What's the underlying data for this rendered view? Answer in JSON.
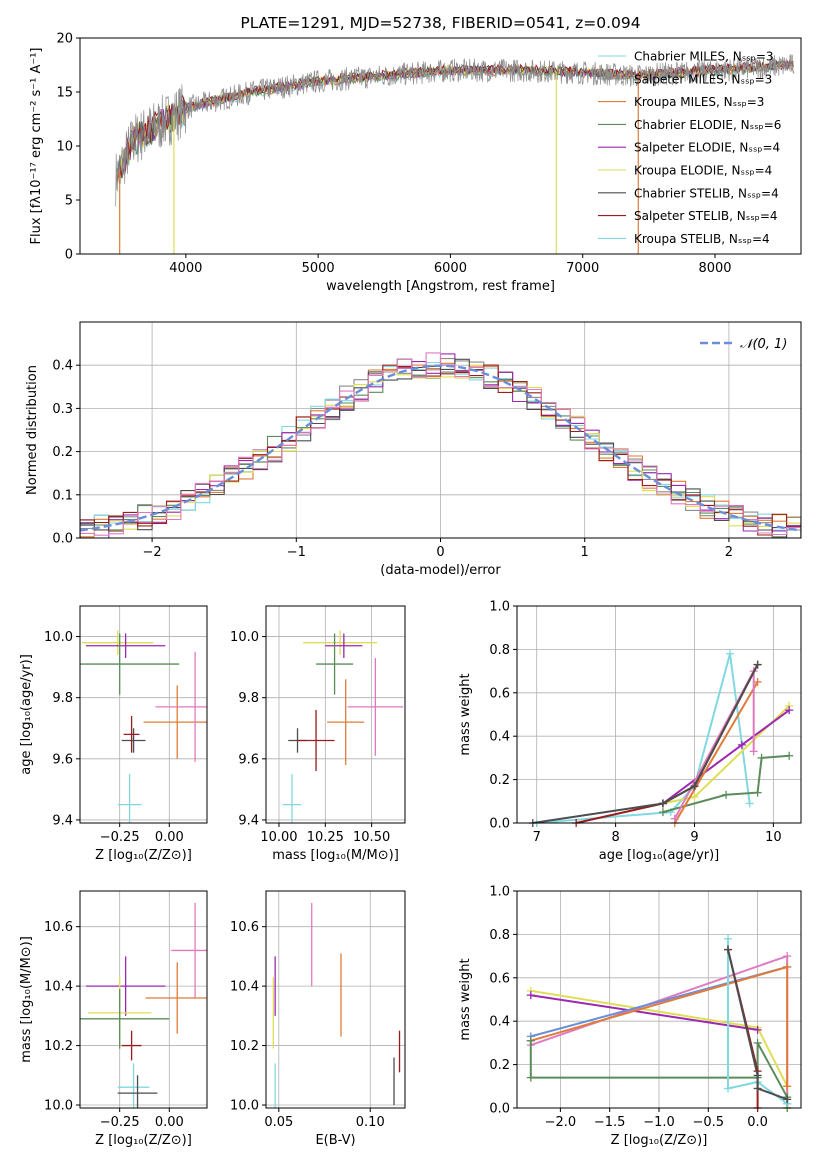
{
  "colors": [
    "#8c8c8c",
    "#9b4dca",
    "#ffa500",
    "#5b8c5a",
    "#9c27b0",
    "#dede55",
    "#4d4d4d",
    "#9b1c1c",
    "#80d8e0",
    "#e07ac0",
    "#e07b39",
    "#6a8fd8"
  ],
  "spectrum": {
    "title": "PLATE=1291, MJD=52738, FIBERID=0541, z=0.094",
    "xlabel": "wavelength [Angstrom, rest frame]",
    "ylabel": "Flux [fλ10⁻¹⁷ erg cm⁻² s⁻¹ A⁻¹]",
    "xticks": [
      "4000",
      "5000",
      "6000",
      "7000",
      "8000"
    ],
    "yticks": [
      "0",
      "5",
      "10",
      "15",
      "20"
    ],
    "legend": [
      {
        "label": "Chabrier MILES, N_SSP=3",
        "color": "#80d8e0"
      },
      {
        "label": "Salpeter MILES, N_SSP=3",
        "color": "#8c8c8c"
      },
      {
        "label": "Kroupa MILES, N_SSP=3",
        "color": "#e07b39"
      },
      {
        "label": "Chabrier ELODIE, N_SSP=6",
        "color": "#5b8c5a"
      },
      {
        "label": "Salpeter ELODIE, N_SSP=4",
        "color": "#9c27b0"
      },
      {
        "label": "Kroupa ELODIE, N_SSP=4",
        "color": "#dede55"
      },
      {
        "label": "Chabrier STELIB, N_SSP=4",
        "color": "#4d4d4d"
      },
      {
        "label": "Salpeter STELIB, N_SSP=4",
        "color": "#9b1c1c"
      },
      {
        "label": "Kroupa STELIB, N_SSP=4",
        "color": "#80d8e0"
      }
    ]
  },
  "residual": {
    "xlabel": "(data-model)/error",
    "ylabel": "Normed distribution",
    "xticks": [
      "−2",
      "−1",
      "0",
      "1",
      "2"
    ],
    "yticks": [
      "0.0",
      "0.1",
      "0.2",
      "0.3",
      "0.4"
    ],
    "legend": "𝒩(0, 1)"
  },
  "panels": {
    "age_vs_z": {
      "xlabel": "Z [log₁₀(Z/Z⊙)]",
      "ylabel": "age  [log₁₀(age/yr)]",
      "xticks": [
        "−0.25",
        "0.00"
      ],
      "yticks": [
        "9.4",
        "9.6",
        "9.8",
        "10.0"
      ]
    },
    "age_vs_mass": {
      "xlabel": "mass [log₁₀(M/M⊙)]",
      "xticks": [
        "10.00",
        "10.25",
        "10.50"
      ],
      "yticks": [
        "9.4",
        "9.6",
        "9.8",
        "10.0"
      ]
    },
    "mass_weight_age": {
      "xlabel": "age  [log₁₀(age/yr)]",
      "ylabel": "mass weight",
      "xticks": [
        "7",
        "8",
        "9",
        "10"
      ],
      "yticks": [
        "0.0",
        "0.2",
        "0.4",
        "0.6",
        "0.8",
        "1.0"
      ]
    },
    "mass_vs_z": {
      "xlabel": "Z [log₁₀(Z/Z⊙)]",
      "ylabel": "mass [log₁₀(M/M⊙)]",
      "xticks": [
        "−0.25",
        "0.00"
      ],
      "yticks": [
        "10.0",
        "10.2",
        "10.4",
        "10.6"
      ]
    },
    "mass_vs_ebv": {
      "xlabel": "E(B-V)",
      "xticks": [
        "0.05",
        "0.10"
      ],
      "yticks": [
        "10.0",
        "10.2",
        "10.4",
        "10.6"
      ]
    },
    "mass_weight_z": {
      "xlabel": "Z [log₁₀(Z/Z⊙)]",
      "ylabel": "mass weight",
      "xticks": [
        "−2.0",
        "−1.5",
        "−1.0",
        "−0.5",
        "0.0"
      ],
      "yticks": [
        "0.0",
        "0.2",
        "0.4",
        "0.6",
        "0.8",
        "1.0"
      ]
    }
  },
  "chart_data": [
    {
      "type": "line",
      "title": "PLATE=1291, MJD=52738, FIBERID=0541, z=0.094",
      "xlim": [
        3200,
        8650
      ],
      "ylim": [
        0,
        20
      ],
      "series": [
        {
          "name": "Salpeter MILES, N_SSP=3",
          "x": [
            3470,
            3600,
            3800,
            4000,
            4500,
            5000,
            5500,
            6000,
            6500,
            7000,
            7400,
            8000,
            8600
          ],
          "values": [
            7,
            10.5,
            12,
            13.5,
            15,
            16,
            16.5,
            17,
            17,
            16.8,
            16.5,
            17,
            17.5
          ]
        }
      ]
    },
    {
      "type": "bar",
      "xlim": [
        -2.5,
        2.5
      ],
      "ylim": [
        0,
        0.5
      ],
      "grid": true,
      "categories": [
        -2.4,
        -2.2,
        -2.0,
        -1.8,
        -1.6,
        -1.4,
        -1.2,
        -1.0,
        -0.8,
        -0.6,
        -0.4,
        -0.2,
        0.0,
        0.2,
        0.4,
        0.6,
        0.8,
        1.0,
        1.2,
        1.4,
        1.6,
        1.8,
        2.0,
        2.2,
        2.4
      ],
      "values": [
        0.02,
        0.03,
        0.05,
        0.07,
        0.1,
        0.14,
        0.18,
        0.24,
        0.29,
        0.34,
        0.38,
        0.41,
        0.4,
        0.4,
        0.37,
        0.33,
        0.28,
        0.23,
        0.18,
        0.13,
        0.09,
        0.07,
        0.05,
        0.035,
        0.025
      ]
    },
    {
      "type": "scatter",
      "xlabel": "Z [log10(Z/Zsun)]",
      "ylabel": "age [log10(age/yr)]",
      "points": [
        {
          "x": -0.26,
          "y": 9.98,
          "xerr": 0.18,
          "yerr": 0.04,
          "color": "#dede55"
        },
        {
          "x": -0.22,
          "y": 9.97,
          "xerr": 0.2,
          "yerr": 0.04,
          "color": "#9c27b0"
        },
        {
          "x": -0.25,
          "y": 9.91,
          "xerr": 0.3,
          "yerr": 0.1,
          "color": "#5b8c5a"
        },
        {
          "x": 0.04,
          "y": 9.72,
          "xerr": 0.17,
          "yerr": 0.12,
          "color": "#e07b39"
        },
        {
          "x": 0.13,
          "y": 9.77,
          "xerr": 0.2,
          "yerr": 0.18,
          "color": "#e07ac0"
        },
        {
          "x": -0.18,
          "y": 9.66,
          "xerr": 0.06,
          "yerr": 0.04,
          "color": "#4d4d4d"
        },
        {
          "x": -0.19,
          "y": 9.68,
          "xerr": 0.04,
          "yerr": 0.06,
          "color": "#9b1c1c"
        },
        {
          "x": -0.2,
          "y": 9.45,
          "xerr": 0.06,
          "yerr": 0.1,
          "color": "#80d8e0"
        }
      ]
    },
    {
      "type": "scatter",
      "xlabel": "mass [log10(M/Msun)]",
      "ylabel": "age [log10(age/yr)]",
      "points": [
        {
          "x": 10.33,
          "y": 9.98,
          "xerr": 0.2,
          "yerr": 0.04,
          "color": "#dede55"
        },
        {
          "x": 10.35,
          "y": 9.97,
          "xerr": 0.1,
          "yerr": 0.04,
          "color": "#9c27b0"
        },
        {
          "x": 10.3,
          "y": 9.91,
          "xerr": 0.1,
          "yerr": 0.1,
          "color": "#5b8c5a"
        },
        {
          "x": 10.36,
          "y": 9.72,
          "xerr": 0.1,
          "yerr": 0.14,
          "color": "#e07b39"
        },
        {
          "x": 10.52,
          "y": 9.77,
          "xerr": 0.15,
          "yerr": 0.16,
          "color": "#e07ac0"
        },
        {
          "x": 10.1,
          "y": 9.66,
          "xerr": 0.05,
          "yerr": 0.04,
          "color": "#4d4d4d"
        },
        {
          "x": 10.2,
          "y": 9.66,
          "xerr": 0.1,
          "yerr": 0.1,
          "color": "#9b1c1c"
        },
        {
          "x": 10.07,
          "y": 9.45,
          "xerr": 0.05,
          "yerr": 0.1,
          "color": "#80d8e0"
        }
      ]
    },
    {
      "type": "line",
      "xlabel": "age [log10(age/yr)]",
      "ylabel": "mass weight",
      "series": [
        {
          "color": "#80d8e0",
          "x": [
            7.0,
            8.7,
            9.0,
            9.45,
            9.7
          ],
          "values": [
            0.0,
            0.05,
            0.17,
            0.78,
            0.09
          ]
        },
        {
          "color": "#dede55",
          "x": [
            8.6,
            9.0,
            10.2
          ],
          "values": [
            0.09,
            0.12,
            0.54
          ]
        },
        {
          "color": "#9c27b0",
          "x": [
            8.6,
            9.6,
            10.2
          ],
          "values": [
            0.09,
            0.36,
            0.52
          ]
        },
        {
          "color": "#5b8c5a",
          "x": [
            8.6,
            9.4,
            9.8,
            9.85,
            10.2
          ],
          "values": [
            0.05,
            0.13,
            0.14,
            0.3,
            0.31
          ]
        },
        {
          "color": "#e07b39",
          "x": [
            8.75,
            9.8
          ],
          "values": [
            0.0,
            0.65
          ]
        },
        {
          "color": "#e07ac0",
          "x": [
            8.75,
            9.75,
            9.75
          ],
          "values": [
            0.02,
            0.7,
            0.33
          ]
        },
        {
          "color": "#9b1c1c",
          "x": [
            7.5,
            8.6,
            9.0,
            9.8
          ],
          "values": [
            0.0,
            0.09,
            0.17,
            0.73
          ]
        },
        {
          "color": "#4d4d4d",
          "x": [
            6.95,
            8.6,
            9.0,
            9.8
          ],
          "values": [
            0.0,
            0.09,
            0.17,
            0.73
          ]
        }
      ]
    },
    {
      "type": "scatter",
      "xlabel": "Z [log10(Z/Zsun)]",
      "ylabel": "mass [log10(M/Msun)]",
      "points": [
        {
          "x": 0.13,
          "y": 10.52,
          "xerr": 0.12,
          "yerr": 0.16,
          "color": "#e07ac0"
        },
        {
          "x": -0.22,
          "y": 10.4,
          "xerr": 0.2,
          "yerr": 0.1,
          "color": "#9c27b0"
        },
        {
          "x": 0.04,
          "y": 10.36,
          "xerr": 0.16,
          "yerr": 0.12,
          "color": "#e07b39"
        },
        {
          "x": -0.25,
          "y": 10.31,
          "xerr": 0.16,
          "yerr": 0.12,
          "color": "#dede55"
        },
        {
          "x": -0.25,
          "y": 10.29,
          "xerr": 0.25,
          "yerr": 0.1,
          "color": "#5b8c5a"
        },
        {
          "x": -0.19,
          "y": 10.2,
          "xerr": 0.05,
          "yerr": 0.05,
          "color": "#9b1c1c"
        },
        {
          "x": -0.18,
          "y": 10.06,
          "xerr": 0.08,
          "yerr": 0.08,
          "color": "#80d8e0"
        },
        {
          "x": -0.16,
          "y": 10.04,
          "xerr": 0.1,
          "yerr": 0.06,
          "color": "#4d4d4d"
        }
      ]
    },
    {
      "type": "scatter",
      "xlabel": "E(B-V)",
      "ylabel": "mass [log10(M/Msun)]",
      "points": [
        {
          "x": 0.048,
          "y": 10.4,
          "xerr": 0,
          "yerr": 0.1,
          "color": "#9c27b0"
        },
        {
          "x": 0.047,
          "y": 10.31,
          "xerr": 0,
          "yerr": 0.12,
          "color": "#dede55"
        },
        {
          "x": 0.048,
          "y": 10.06,
          "xerr": 0,
          "yerr": 0.08,
          "color": "#80d8e0"
        },
        {
          "x": 0.068,
          "y": 10.54,
          "xerr": 0,
          "yerr": 0.14,
          "color": "#e07ac0"
        },
        {
          "x": 0.084,
          "y": 10.37,
          "xerr": 0,
          "yerr": 0.14,
          "color": "#e07b39"
        },
        {
          "x": 0.113,
          "y": 10.08,
          "xerr": 0,
          "yerr": 0.08,
          "color": "#4d4d4d"
        },
        {
          "x": 0.116,
          "y": 10.18,
          "xerr": 0,
          "yerr": 0.07,
          "color": "#9b1c1c"
        }
      ]
    },
    {
      "type": "line",
      "xlabel": "Z [log10(Z/Zsun)]",
      "ylabel": "mass weight",
      "series": [
        {
          "color": "#dede55",
          "x": [
            -2.3,
            0.0,
            0.3,
            0.3
          ],
          "values": [
            0.54,
            0.37,
            0.1,
            0.0
          ]
        },
        {
          "color": "#9c27b0",
          "x": [
            -2.3,
            0.0
          ],
          "values": [
            0.52,
            0.36
          ]
        },
        {
          "color": "#e07ac0",
          "x": [
            -2.3,
            0.3,
            0.3
          ],
          "values": [
            0.29,
            0.7,
            0.02
          ]
        },
        {
          "color": "#6a8fd8",
          "x": [
            -2.3,
            0.3
          ],
          "values": [
            0.33,
            0.65
          ]
        },
        {
          "color": "#e07b39",
          "x": [
            -2.3,
            0.3,
            0.3
          ],
          "values": [
            0.31,
            0.65,
            0.1
          ]
        },
        {
          "color": "#5b8c5a",
          "x": [
            -2.3,
            -2.3,
            0.0,
            0.0,
            0.3,
            0.3
          ],
          "values": [
            0.31,
            0.14,
            0.14,
            0.3,
            0.05,
            0.0
          ]
        },
        {
          "color": "#80d8e0",
          "x": [
            -0.3,
            -0.3,
            0.0,
            0.3
          ],
          "values": [
            0.78,
            0.09,
            0.12,
            0.02
          ]
        },
        {
          "color": "#9b1c1c",
          "x": [
            -0.3,
            0.0,
            0.0
          ],
          "values": [
            0.73,
            0.17,
            0.0
          ]
        },
        {
          "color": "#4d4d4d",
          "x": [
            -0.3,
            0.0,
            0.0,
            0.3
          ],
          "values": [
            0.73,
            0.15,
            0.09,
            0.04
          ]
        }
      ]
    }
  ]
}
